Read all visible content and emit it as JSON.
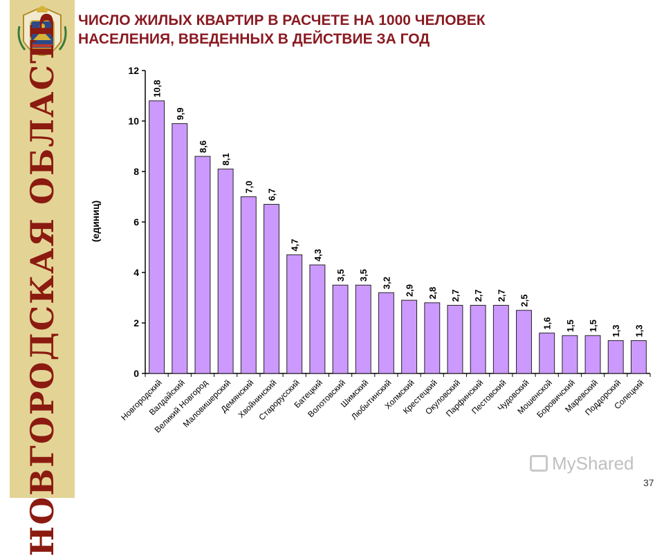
{
  "slide": {
    "title_line1": "ЧИСЛО ЖИЛЫХ КВАРТИР В  РАСЧЕТЕ НА 1000 ЧЕЛОВЕК",
    "title_line2": "НАСЕЛЕНИЯ, ВВЕДЕННЫХ В ДЕЙСТВИЕ ЗА ГОД",
    "region_name": "НОВГОРОДСКАЯ ОБЛАСТЬ",
    "page_number": "37",
    "watermark": "MyShared",
    "colors": {
      "sidebar": "#e3d495",
      "title": "#8a1a22",
      "bar_fill": "#cc99ff",
      "bar_stroke": "#222222"
    }
  },
  "chart_data": {
    "type": "bar",
    "title": "",
    "xlabel": "",
    "ylabel": "(единиц)",
    "ylim": [
      0,
      12
    ],
    "yticks": [
      0,
      2,
      4,
      6,
      8,
      10,
      12
    ],
    "grid": false,
    "categories": [
      "Новгородский",
      "Валдайский",
      "Великий Новгород",
      "Маловишерский",
      "Демянский",
      "Хвойнинский",
      "Старорусский",
      "Батецкий",
      "Волотовский",
      "Шимский",
      "Любытинский",
      "Холмский",
      "Крестецкий",
      "Окуловский",
      "Парфинский",
      "Пестовский",
      "Чудовский",
      "Мошенской",
      "Боровичский",
      "Маревский",
      "Поддорский",
      "Солецкий"
    ],
    "values": [
      10.8,
      9.9,
      8.6,
      8.1,
      7.0,
      6.7,
      4.7,
      4.3,
      3.5,
      3.5,
      3.2,
      2.9,
      2.8,
      2.7,
      2.7,
      2.7,
      2.5,
      1.6,
      1.5,
      1.5,
      1.3,
      1.3
    ],
    "data_labels": [
      "10,8",
      "9,9",
      "8,6",
      "8,1",
      "7,0",
      "6,7",
      "4,7",
      "4,3",
      "3,5",
      "3,5",
      "3,2",
      "2,9",
      "2,8",
      "2,7",
      "2,7",
      "2,7",
      "2,5",
      "1,6",
      "1,5",
      "1,5",
      "1,3",
      "1,3"
    ]
  }
}
